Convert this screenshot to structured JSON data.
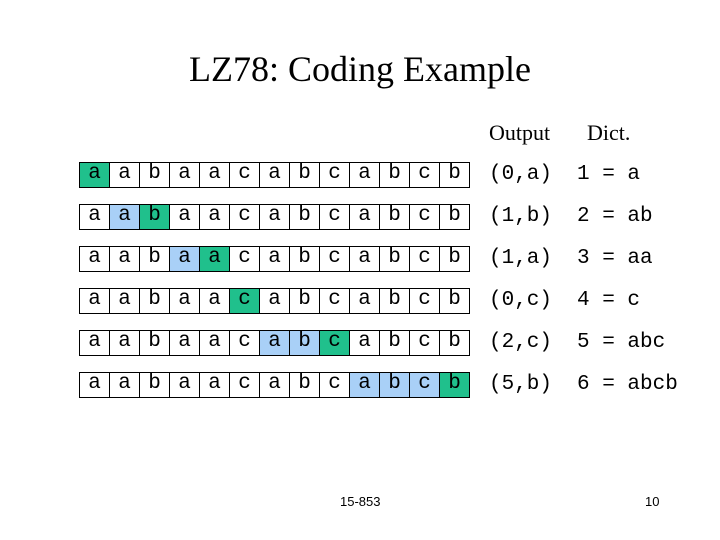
{
  "slide": {
    "title": "LZ78: Coding Example",
    "headers": {
      "output": "Output",
      "dict": "Dict."
    },
    "input_string": [
      "a",
      "a",
      "b",
      "a",
      "a",
      "c",
      "a",
      "b",
      "c",
      "a",
      "b",
      "c",
      "b"
    ],
    "colors": {
      "new_char": "#20c08c",
      "matched_prefix": "#a9d0f7"
    },
    "steps": [
      {
        "cells": [
          "a",
          "a",
          "b",
          "a",
          "a",
          "c",
          "a",
          "b",
          "c",
          "a",
          "b",
          "c",
          "b"
        ],
        "prefix": [],
        "new": 0,
        "output": "(0,a)",
        "dict": "1 = a"
      },
      {
        "cells": [
          "a",
          "a",
          "b",
          "a",
          "a",
          "c",
          "a",
          "b",
          "c",
          "a",
          "b",
          "c",
          "b"
        ],
        "prefix": [
          1
        ],
        "new": 2,
        "output": "(1,b)",
        "dict": "2 = ab"
      },
      {
        "cells": [
          "a",
          "a",
          "b",
          "a",
          "a",
          "c",
          "a",
          "b",
          "c",
          "a",
          "b",
          "c",
          "b"
        ],
        "prefix": [
          3
        ],
        "new": 4,
        "output": "(1,a)",
        "dict": "3 = aa"
      },
      {
        "cells": [
          "a",
          "a",
          "b",
          "a",
          "a",
          "c",
          "a",
          "b",
          "c",
          "a",
          "b",
          "c",
          "b"
        ],
        "prefix": [],
        "new": 5,
        "output": "(0,c)",
        "dict": "4 = c"
      },
      {
        "cells": [
          "a",
          "a",
          "b",
          "a",
          "a",
          "c",
          "a",
          "b",
          "c",
          "a",
          "b",
          "c",
          "b"
        ],
        "prefix": [
          6,
          7
        ],
        "new": 8,
        "output": "(2,c)",
        "dict": "5 = abc"
      },
      {
        "cells": [
          "a",
          "a",
          "b",
          "a",
          "a",
          "c",
          "a",
          "b",
          "c",
          "a",
          "b",
          "c",
          "b"
        ],
        "prefix": [
          9,
          10,
          11
        ],
        "new": 12,
        "output": "(5,b)",
        "dict": "6 = abcb"
      }
    ],
    "footer": {
      "course": "15-853",
      "page": "10"
    }
  }
}
